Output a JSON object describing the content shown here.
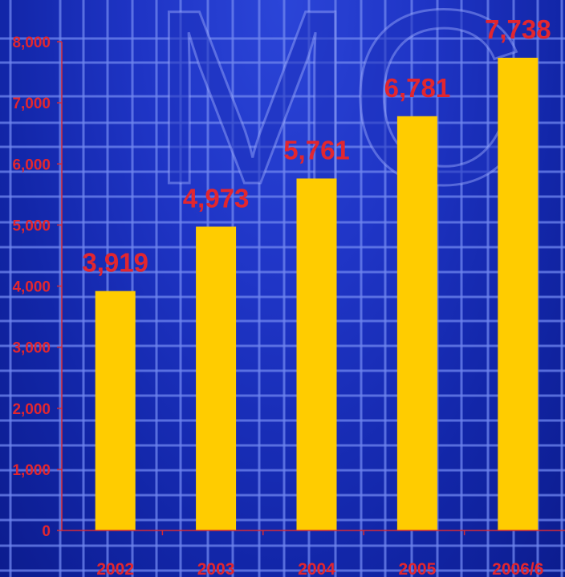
{
  "chart_data": {
    "type": "bar",
    "categories": [
      "2002",
      "2003",
      "2004",
      "2005",
      "2006/6"
    ],
    "values": [
      3919,
      4973,
      5761,
      6781,
      7738
    ],
    "data_labels": [
      "3,919",
      "4,973",
      "5,761",
      "6,781",
      "7,738"
    ],
    "y_ticks": [
      0,
      1000,
      2000,
      3000,
      4000,
      5000,
      6000,
      7000,
      8000
    ],
    "y_tick_labels": [
      "0",
      "1,000",
      "2,000",
      "3,000",
      "4,000",
      "5,000",
      "6,000",
      "7,000",
      "8,000"
    ],
    "ylim": [
      0,
      8000
    ],
    "grid": true,
    "title": "",
    "xlabel": "",
    "ylabel": ""
  },
  "colors": {
    "bar": "#ffcc00",
    "text": "#e2262f",
    "axis": "#d62a36",
    "grid": "#6f86ee"
  },
  "watermark": {
    "text": "MC"
  }
}
